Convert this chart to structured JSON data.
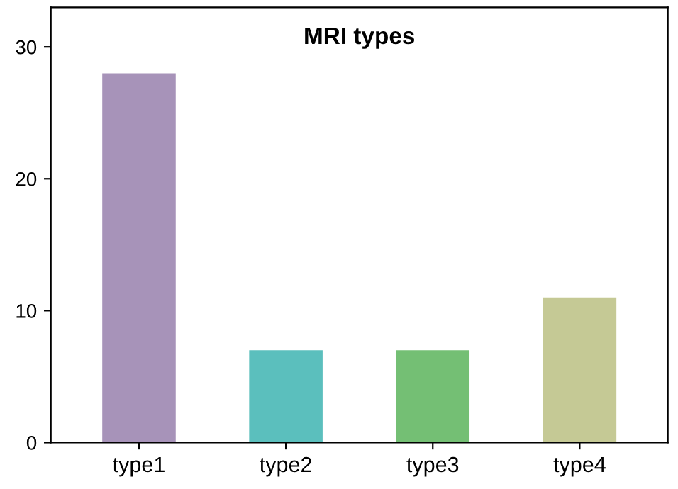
{
  "chart_data": {
    "type": "bar",
    "title": "MRI types",
    "categories": [
      "type1",
      "type2",
      "type3",
      "type4"
    ],
    "values": [
      28,
      7,
      7,
      11
    ],
    "colors": [
      "#a793b9",
      "#5bbfbd",
      "#74bf74",
      "#c5c995"
    ],
    "ylim": [
      0,
      33
    ],
    "yticks": [
      0,
      10,
      20,
      30
    ],
    "grid": false,
    "legend": false
  }
}
